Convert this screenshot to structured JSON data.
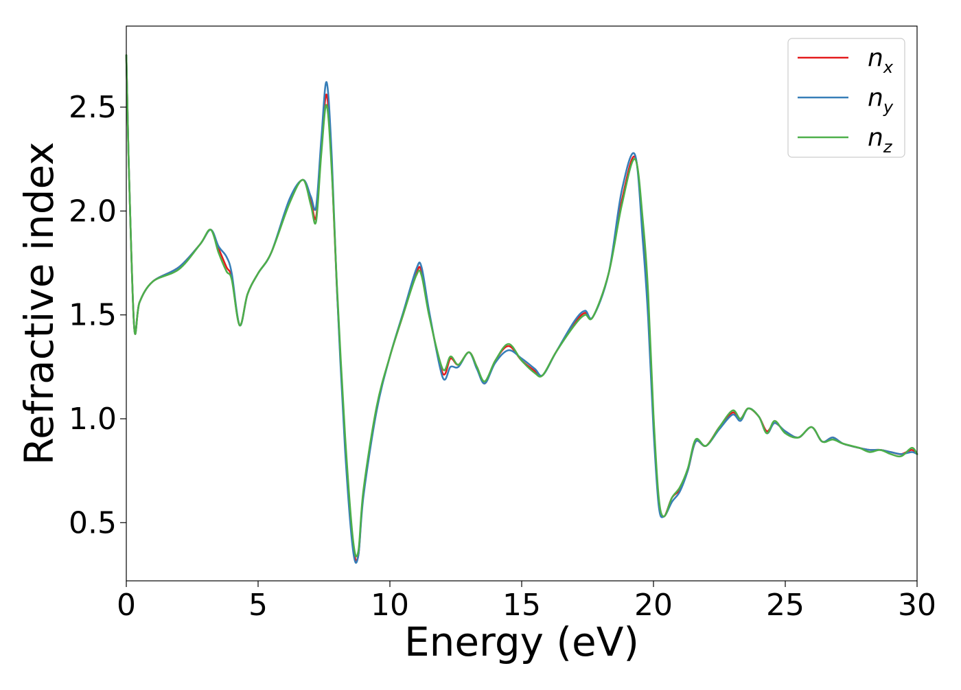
{
  "chart_data": {
    "type": "line",
    "title": "",
    "xlabel": "Energy (eV)",
    "ylabel": "Refractive index",
    "xlim": [
      0,
      30
    ],
    "ylim": [
      0.22,
      2.89
    ],
    "grid": false,
    "legend_position": "top-right",
    "x_ticks": [
      {
        "value": 0,
        "label": "0"
      },
      {
        "value": 5,
        "label": "5"
      },
      {
        "value": 10,
        "label": "10"
      },
      {
        "value": 15,
        "label": "15"
      },
      {
        "value": 20,
        "label": "20"
      },
      {
        "value": 25,
        "label": "25"
      },
      {
        "value": 30,
        "label": "30"
      }
    ],
    "y_ticks": [
      {
        "value": 0.5,
        "label": "0.5"
      },
      {
        "value": 1.0,
        "label": "1.0"
      },
      {
        "value": 1.5,
        "label": "1.5"
      },
      {
        "value": 2.0,
        "label": "2.0"
      },
      {
        "value": 2.5,
        "label": "2.5"
      }
    ],
    "x": [
      0,
      0.1,
      0.3,
      0.5,
      1,
      2,
      2.8,
      3.2,
      3.5,
      3.8,
      4.0,
      4.3,
      4.6,
      5,
      5.5,
      6.2,
      6.7,
      7.0,
      7.2,
      7.4,
      7.6,
      7.8,
      8.0,
      8.3,
      8.6,
      8.8,
      9.0,
      9.5,
      10,
      10.5,
      11,
      11.2,
      11.5,
      12,
      12.3,
      12.6,
      13,
      13.3,
      13.6,
      14,
      14.5,
      15,
      15.5,
      15.8,
      16.3,
      17,
      17.4,
      17.7,
      18.3,
      18.8,
      19.3,
      19.6,
      19.8,
      20.0,
      20.2,
      20.4,
      20.7,
      21,
      21.3,
      21.6,
      22,
      22.5,
      23,
      23.3,
      23.6,
      24,
      24.3,
      24.6,
      25,
      25.5,
      26,
      26.4,
      26.8,
      27.2,
      27.8,
      28.2,
      28.6,
      29,
      29.4,
      29.8,
      30
    ],
    "series": [
      {
        "name": "x",
        "color": "#e41a1c",
        "values": [
          2.75,
          2.2,
          1.44,
          1.56,
          1.66,
          1.73,
          1.84,
          1.91,
          1.82,
          1.73,
          1.68,
          1.45,
          1.6,
          1.7,
          1.8,
          2.05,
          2.15,
          2.05,
          1.97,
          2.3,
          2.56,
          2.2,
          1.6,
          0.9,
          0.4,
          0.34,
          0.65,
          1.05,
          1.3,
          1.5,
          1.7,
          1.71,
          1.5,
          1.22,
          1.29,
          1.26,
          1.32,
          1.25,
          1.17,
          1.28,
          1.35,
          1.28,
          1.23,
          1.21,
          1.32,
          1.46,
          1.51,
          1.49,
          1.7,
          2.05,
          2.26,
          1.9,
          1.55,
          1.0,
          0.6,
          0.53,
          0.62,
          0.66,
          0.75,
          0.89,
          0.87,
          0.96,
          1.03,
          1.0,
          1.05,
          1.01,
          0.94,
          0.98,
          0.94,
          0.91,
          0.96,
          0.89,
          0.91,
          0.88,
          0.86,
          0.85,
          0.85,
          0.84,
          0.83,
          0.85,
          0.83
        ]
      },
      {
        "name": "y",
        "color": "#377eb8",
        "values": [
          2.75,
          2.2,
          1.44,
          1.56,
          1.66,
          1.73,
          1.84,
          1.91,
          1.83,
          1.78,
          1.7,
          1.45,
          1.6,
          1.7,
          1.8,
          2.06,
          2.15,
          2.07,
          2.02,
          2.35,
          2.62,
          2.25,
          1.6,
          0.85,
          0.37,
          0.34,
          0.63,
          1.04,
          1.3,
          1.51,
          1.72,
          1.73,
          1.51,
          1.2,
          1.25,
          1.25,
          1.32,
          1.24,
          1.17,
          1.27,
          1.33,
          1.29,
          1.24,
          1.21,
          1.32,
          1.47,
          1.52,
          1.49,
          1.7,
          2.1,
          2.27,
          1.85,
          1.48,
          0.95,
          0.58,
          0.53,
          0.6,
          0.65,
          0.75,
          0.89,
          0.87,
          0.95,
          1.02,
          0.99,
          1.05,
          1.01,
          0.93,
          0.98,
          0.94,
          0.91,
          0.96,
          0.89,
          0.91,
          0.88,
          0.86,
          0.85,
          0.85,
          0.84,
          0.83,
          0.84,
          0.83
        ]
      },
      {
        "name": "z",
        "color": "#4daf4a",
        "values": [
          2.75,
          2.2,
          1.44,
          1.56,
          1.66,
          1.72,
          1.84,
          1.91,
          1.8,
          1.71,
          1.67,
          1.45,
          1.6,
          1.7,
          1.8,
          2.04,
          2.15,
          2.03,
          1.95,
          2.28,
          2.51,
          2.18,
          1.62,
          0.92,
          0.42,
          0.36,
          0.66,
          1.06,
          1.3,
          1.5,
          1.69,
          1.69,
          1.49,
          1.24,
          1.3,
          1.26,
          1.32,
          1.25,
          1.18,
          1.28,
          1.36,
          1.28,
          1.22,
          1.21,
          1.32,
          1.45,
          1.5,
          1.49,
          1.7,
          2.03,
          2.25,
          1.95,
          1.6,
          1.02,
          0.62,
          0.53,
          0.62,
          0.67,
          0.76,
          0.9,
          0.87,
          0.96,
          1.04,
          1.0,
          1.05,
          1.01,
          0.93,
          0.99,
          0.93,
          0.91,
          0.96,
          0.89,
          0.9,
          0.88,
          0.86,
          0.84,
          0.85,
          0.83,
          0.82,
          0.86,
          0.83
        ]
      }
    ],
    "legend": [
      {
        "symbol": "n",
        "sub": "x",
        "color": "#e41a1c"
      },
      {
        "symbol": "n",
        "sub": "y",
        "color": "#377eb8"
      },
      {
        "symbol": "n",
        "sub": "z",
        "color": "#4daf4a"
      }
    ]
  }
}
